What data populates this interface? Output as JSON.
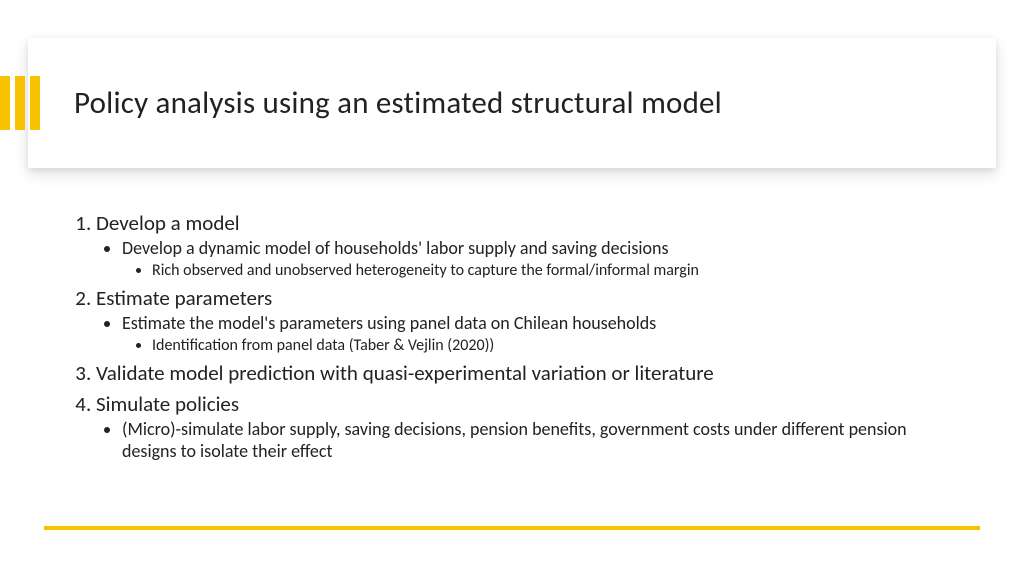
{
  "colors": {
    "accent": "#f7c300",
    "text": "#222222",
    "card_bg": "#ffffff",
    "slide_bg": "#ffffff"
  },
  "title": "Policy analysis using an estimated structural model",
  "items": [
    {
      "num": "1.",
      "label": "Develop a model",
      "sub": [
        {
          "text": "Develop a dynamic model of households' labor supply and saving decisions",
          "sub": [
            {
              "text": "Rich observed and unobserved heterogeneity to capture the formal/informal margin"
            }
          ]
        }
      ]
    },
    {
      "num": "2.",
      "label": "Estimate parameters",
      "sub": [
        {
          "text": "Estimate the model's parameters using panel data on Chilean households",
          "sub": [
            {
              "text": "Identification from panel data (Taber & Vejlin (2020))"
            }
          ]
        }
      ]
    },
    {
      "num": "3.",
      "label": "Validate model prediction with quasi-experimental variation or literature",
      "sub": []
    },
    {
      "num": "4.",
      "label": "Simulate policies",
      "sub": [
        {
          "text": "(Micro)-simulate labor supply, saving decisions, pension benefits, government costs under different pension designs to isolate their effect",
          "sub": []
        }
      ]
    }
  ]
}
